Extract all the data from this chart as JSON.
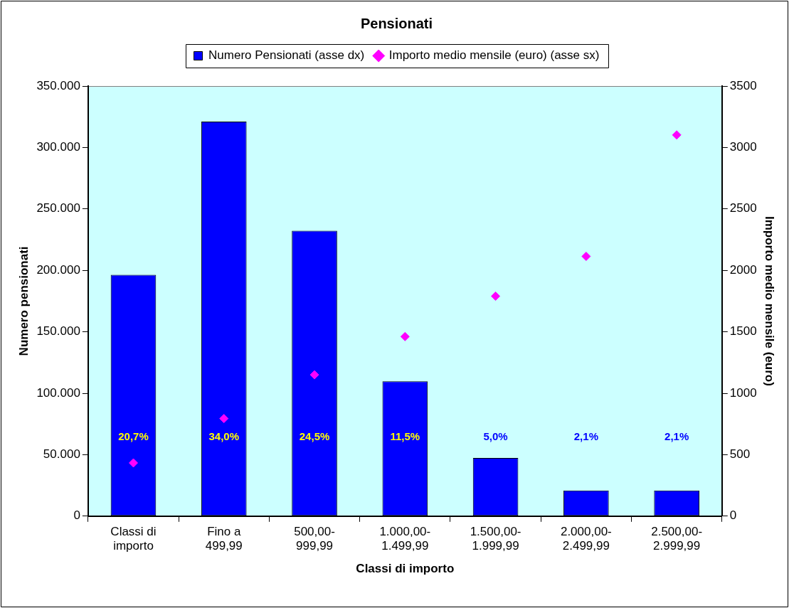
{
  "chart_data": {
    "type": "bar",
    "title": "Pensionati",
    "xlabel": "Classi di importo",
    "ylabel": "Numero pensionati",
    "y2label": "Importo medio mensile (euro)",
    "categories": [
      "Classi di importo",
      "Fino a 499,99",
      "500,00-999,99",
      "1.000,00-1.499,99",
      "1.500,00-1.999,99",
      "2.000,00-2.499,99",
      "2.500,00-2.999,99"
    ],
    "series": [
      {
        "name": "Numero Pensionati (asse dx)",
        "color": "#0000ff",
        "values": [
          196400,
          321100,
          232200,
          109700,
          47400,
          20800,
          20800
        ]
      },
      {
        "name": "Importo medio mensile (euro) (asse sx)",
        "type": "scatter",
        "axis": "y2",
        "color": "#ff00ff",
        "values": [
          433,
          794,
          1150,
          1461,
          1790,
          2114,
          3102
        ]
      }
    ],
    "annotations": [
      "20,7%",
      "34,0%",
      "24,5%",
      "11,5%",
      "5,0%",
      "2,1%",
      "2,1%"
    ],
    "ylim": [
      0,
      350000
    ],
    "yticks": [
      {
        "value": 0,
        "label": "0"
      },
      {
        "value": 50000,
        "label": "50.000"
      },
      {
        "value": 100000,
        "label": "100.000"
      },
      {
        "value": 150000,
        "label": "150.000"
      },
      {
        "value": 200000,
        "label": "200.000"
      },
      {
        "value": 250000,
        "label": "250.000"
      },
      {
        "value": 300000,
        "label": "300.000"
      },
      {
        "value": 350000,
        "label": "350.000"
      }
    ],
    "y2lim": [
      0,
      3500
    ],
    "y2ticks": [
      0,
      500,
      1000,
      1500,
      2000,
      2500,
      3000,
      3500
    ],
    "legend": "top",
    "marker": "diamond"
  }
}
